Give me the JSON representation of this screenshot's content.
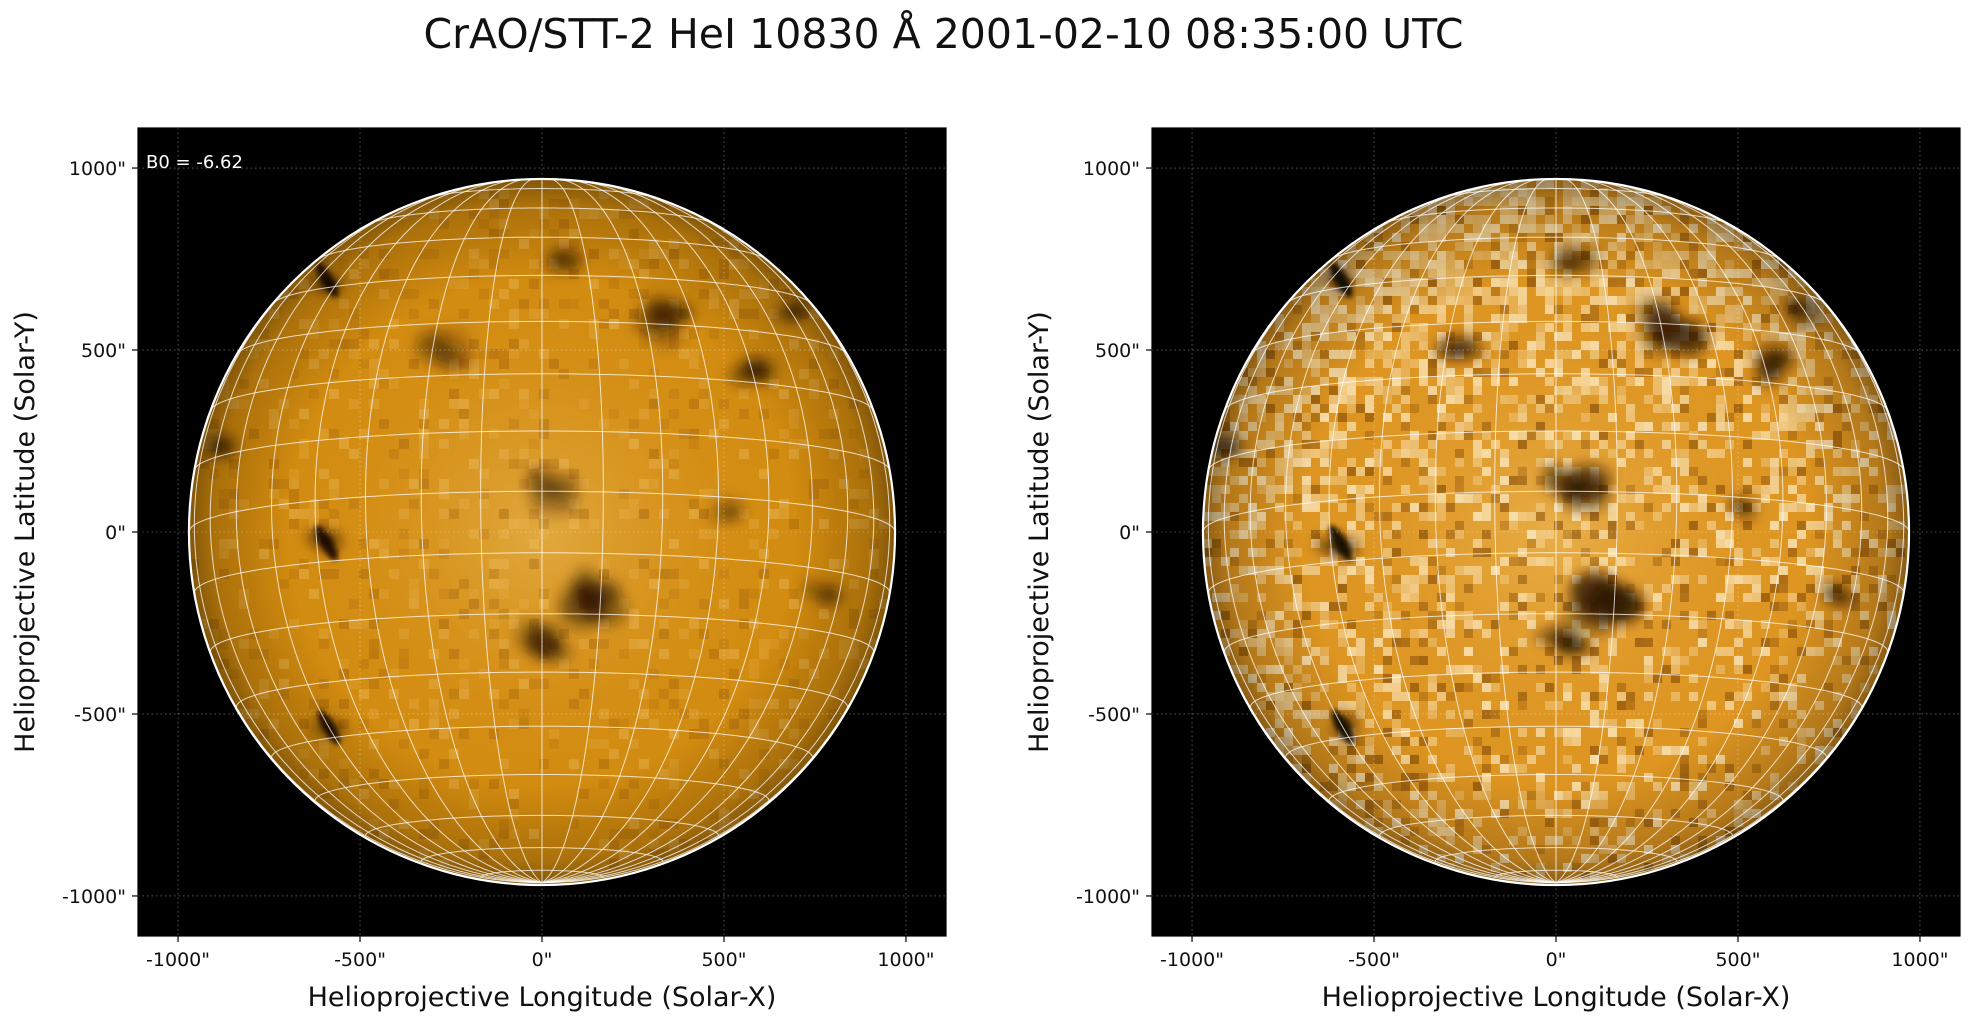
{
  "figure": {
    "title": "CrAO/STT-2 HeI 10830 Å 2001-02-10 08:35:00 UTC"
  },
  "panels": [
    {
      "annotation": "B0 = -6.62",
      "xlabel": "Helioprojective Longitude (Solar-X)",
      "ylabel": "Helioprojective Latitude (Solar-Y)",
      "xticks": [
        "-1000\"",
        "-500\"",
        "0\"",
        "500\"",
        "1000\""
      ],
      "yticks": [
        "1000\"",
        "500\"",
        "0\"",
        "-500\"",
        "-1000\""
      ],
      "contrast": "normal"
    },
    {
      "annotation": "",
      "xlabel": "Helioprojective Longitude (Solar-X)",
      "ylabel": "Helioprojective Latitude (Solar-Y)",
      "xticks": [
        "-1000\"",
        "-500\"",
        "0\"",
        "500\"",
        "1000\""
      ],
      "yticks": [
        "1000\"",
        "500\"",
        "0\"",
        "-500\"",
        "-1000\""
      ],
      "contrast": "enhanced"
    }
  ],
  "image": {
    "colors": {
      "background": "#000000",
      "disk_base": "#d18a0e",
      "disk_dark": "#2a1402",
      "disk_bright": "#fff2d0",
      "grid": "#ffffff"
    },
    "solar_radius_arcsec": 970,
    "b0_deg": -6.62
  },
  "features": [
    {
      "name": "filament-nw",
      "lon": -55,
      "lat": 42,
      "size": 0.05,
      "strength": 0.8
    },
    {
      "name": "filament-w-mid",
      "lon": -38,
      "lat": -7,
      "size": 0.06,
      "strength": 0.5
    },
    {
      "name": "filament-w-south",
      "lon": -50,
      "lat": -38,
      "size": 0.05,
      "strength": 0.7
    },
    {
      "name": "dark-region-center",
      "lon": 2,
      "lat": 0,
      "size": 0.09,
      "strength": 0.6
    },
    {
      "name": "dark-region-south",
      "lon": 8,
      "lat": -18,
      "size": 0.1,
      "strength": 0.75
    },
    {
      "name": "dark-region-south2",
      "lon": 1,
      "lat": -25,
      "size": 0.07,
      "strength": 0.55
    },
    {
      "name": "dark-region-ne",
      "lon": 22,
      "lat": 30,
      "size": 0.12,
      "strength": 0.55
    },
    {
      "name": "dark-region-ne2",
      "lon": 40,
      "lat": 23,
      "size": 0.08,
      "strength": 0.55
    },
    {
      "name": "dark-region-north",
      "lon": 5,
      "lat": 44,
      "size": 0.07,
      "strength": 0.45
    },
    {
      "name": "dark-region-nw2",
      "lon": -18,
      "lat": 25,
      "size": 0.08,
      "strength": 0.45
    },
    {
      "name": "dark-region-e-limb",
      "lon": 60,
      "lat": 35,
      "size": 0.07,
      "strength": 0.55
    },
    {
      "name": "dark-region-east",
      "lon": 32,
      "lat": -2,
      "size": 0.05,
      "strength": 0.4
    },
    {
      "name": "dark-region-se",
      "lon": 55,
      "lat": -14,
      "size": 0.06,
      "strength": 0.5
    },
    {
      "name": "dark-region-w-limb",
      "lon": -72,
      "lat": 12,
      "size": 0.08,
      "strength": 0.5
    }
  ]
}
